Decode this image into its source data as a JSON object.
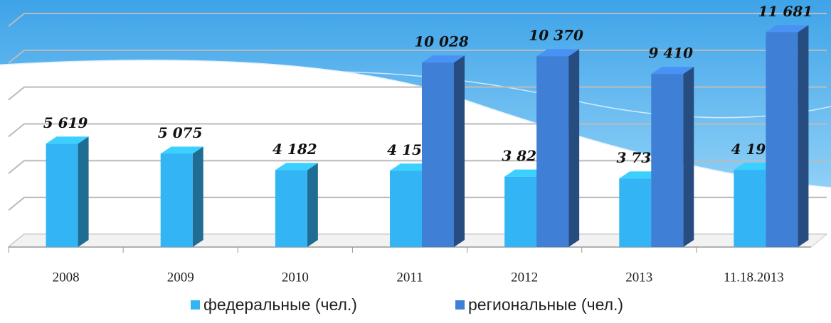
{
  "chart_data": {
    "type": "bar3d",
    "categories": [
      "2008",
      "2009",
      "2010",
      "2011",
      "2012",
      "2013",
      "11.18.2013"
    ],
    "series": [
      {
        "name": "федеральные (чел.)",
        "color": "#33b5f5",
        "values": [
          5619,
          5075,
          4182,
          4155,
          3829,
          3730,
          4195
        ],
        "value_labels": [
          "5 619",
          "5 075",
          "4 182",
          "4 155",
          "3 829",
          "3 730",
          "4 195"
        ]
      },
      {
        "name": "региональные (чел.)",
        "color": "#3f7fd6",
        "values": [
          null,
          null,
          null,
          10028,
          10370,
          9410,
          11681
        ],
        "value_labels": [
          null,
          null,
          null,
          "10 028",
          "10 370",
          "9 410",
          "11 681"
        ]
      }
    ],
    "ylim": [
      0,
      12000
    ],
    "yticks": [
      0,
      2000,
      4000,
      6000,
      8000,
      10000,
      12000
    ],
    "grid": true
  }
}
